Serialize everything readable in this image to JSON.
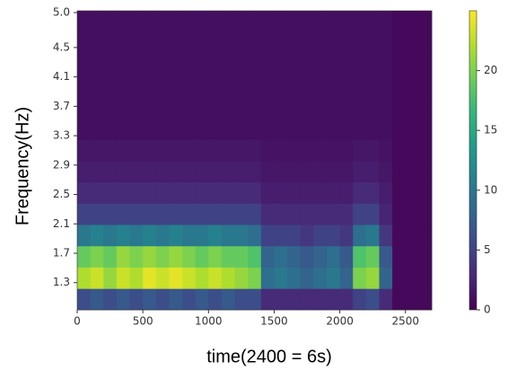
{
  "chart_data": {
    "type": "heatmap",
    "colormap": "viridis",
    "xlabel": "time(2400 = 6s)",
    "ylabel": "Frequency(Hz)",
    "xbins": [
      0,
      100,
      200,
      300,
      400,
      500,
      600,
      700,
      800,
      900,
      1000,
      1100,
      1200,
      1300,
      1400,
      1500,
      1600,
      1700,
      1800,
      1900,
      2000,
      2100,
      2200,
      2300,
      2400,
      2500,
      2600,
      2700
    ],
    "ybins": [
      0.93,
      1.22,
      1.51,
      1.8,
      2.09,
      2.38,
      2.67,
      2.96,
      3.25,
      3.54,
      3.83,
      4.12,
      4.41,
      4.7,
      5.0
    ],
    "values": [
      [
        6,
        7,
        6,
        7,
        6,
        7,
        6,
        7,
        6,
        7,
        6,
        7,
        6,
        6,
        3,
        3,
        3,
        3,
        3,
        3,
        3,
        5,
        6,
        3,
        0.5,
        0.5,
        0.5
      ],
      [
        22,
        23,
        21,
        23,
        22,
        24,
        23,
        24,
        23,
        22,
        23,
        22,
        21,
        20,
        9,
        10,
        9,
        8,
        9,
        10,
        8,
        20,
        21,
        8,
        0.5,
        0.5,
        0.5
      ],
      [
        19,
        20,
        19,
        21,
        20,
        21,
        20,
        21,
        20,
        19,
        20,
        19,
        19,
        18,
        8,
        9,
        8,
        7,
        8,
        9,
        7,
        18,
        19,
        7,
        0.5,
        0.5,
        0.5
      ],
      [
        10,
        11,
        10,
        11,
        10,
        11,
        10,
        11,
        10,
        10,
        11,
        10,
        10,
        9,
        5,
        5,
        5,
        4,
        5,
        5,
        4,
        9,
        10,
        4,
        0.5,
        0.5,
        0.5
      ],
      [
        5,
        5,
        5,
        5,
        5,
        5,
        5,
        5,
        5,
        5,
        5,
        5,
        5,
        5,
        3,
        3,
        3,
        3,
        3,
        3,
        3,
        5,
        5,
        2.5,
        0.5,
        0.5,
        0.5
      ],
      [
        3,
        3,
        3,
        3,
        3,
        3,
        3,
        3,
        3,
        3,
        3,
        3,
        3,
        3,
        2,
        2,
        2,
        2,
        2,
        2,
        2,
        3,
        3,
        2,
        0.5,
        0.5,
        0.5
      ],
      [
        2,
        2,
        2,
        2,
        2,
        2,
        2,
        2,
        2,
        2,
        2,
        2,
        2,
        2,
        1.5,
        1.5,
        1.5,
        1.5,
        1.5,
        1.5,
        1.5,
        2,
        2,
        1.5,
        0.5,
        0.5,
        0.5
      ],
      [
        1.5,
        1.5,
        1.5,
        1.5,
        1.5,
        1.5,
        1.5,
        1.5,
        1.5,
        1.5,
        1.5,
        1.5,
        1.5,
        1.5,
        1.2,
        1.2,
        1.2,
        1.2,
        1.2,
        1.2,
        1.2,
        1.5,
        1.5,
        1.2,
        0.5,
        0.5,
        0.5
      ],
      [
        1,
        1,
        1,
        1,
        1,
        1,
        1,
        1,
        1,
        1,
        1,
        1,
        1,
        1,
        1,
        1,
        1,
        1,
        1,
        1,
        1,
        1,
        1,
        1,
        0.5,
        0.5,
        0.5
      ],
      [
        1,
        1,
        1,
        1,
        1,
        1,
        1,
        1,
        1,
        1,
        1,
        1,
        1,
        1,
        1,
        1,
        1,
        1,
        1,
        1,
        1,
        1,
        1,
        1,
        0.5,
        0.5,
        0.5
      ],
      [
        1,
        1,
        1,
        1,
        1,
        1,
        1,
        1,
        1,
        1,
        1,
        1,
        1,
        1,
        1,
        1,
        1,
        1,
        1,
        1,
        1,
        1,
        1,
        1,
        0.5,
        0.5,
        0.5
      ],
      [
        1,
        1,
        1,
        1,
        1,
        1,
        1,
        1,
        1,
        1,
        1,
        1,
        1,
        1,
        1,
        1,
        1,
        1,
        1,
        1,
        1,
        1,
        1,
        1,
        0.5,
        0.5,
        0.5
      ],
      [
        1,
        1,
        1,
        1,
        1,
        1,
        1,
        1,
        1,
        1,
        1,
        1,
        1,
        1,
        1,
        1,
        1,
        1,
        1,
        1,
        1,
        1,
        1,
        1,
        0.5,
        0.5,
        0.5
      ],
      [
        1,
        1,
        1,
        1,
        1,
        1,
        1,
        1,
        1,
        1,
        1,
        1,
        1,
        1,
        1,
        1,
        1,
        1,
        1,
        1,
        1,
        1,
        1,
        1,
        0.5,
        0.5,
        0.5
      ]
    ],
    "xlim": [
      0,
      2700
    ],
    "xticks": [
      0,
      500,
      1000,
      1500,
      2000,
      2500
    ],
    "ylim": [
      0.93,
      5.0
    ],
    "yticks": [
      1.3,
      1.7,
      2.1,
      2.5,
      2.9,
      3.3,
      3.7,
      4.1,
      4.5,
      {
        "value": 5.0,
        "label": "5.0"
      }
    ],
    "clim": [
      0,
      25
    ],
    "cticks": [
      0,
      5,
      10,
      15,
      20
    ]
  }
}
